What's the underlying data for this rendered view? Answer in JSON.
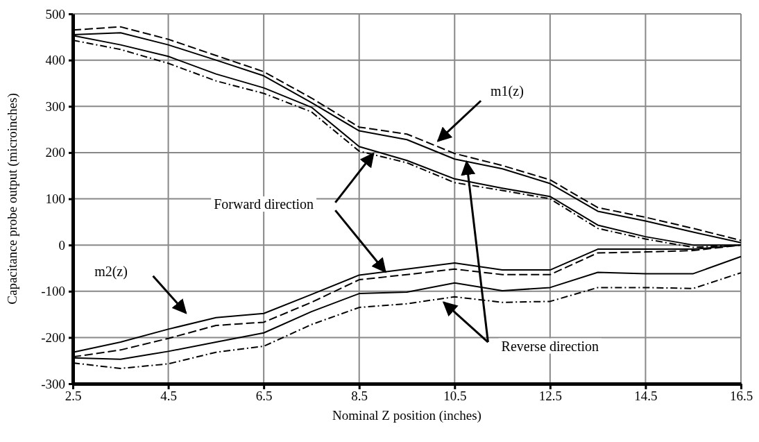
{
  "chart_data": {
    "type": "line",
    "xlabel": "Nominal Z position (inches)",
    "ylabel": "Capacitance probe output (microinches)",
    "x": [
      2.5,
      3.5,
      4.5,
      5.5,
      6.5,
      7.5,
      8.5,
      9.5,
      10.5,
      11.5,
      12.5,
      13.5,
      14.5,
      15.5,
      16.5
    ],
    "xlim": [
      2.5,
      16.5
    ],
    "xticks": [
      2.5,
      4.5,
      6.5,
      8.5,
      10.5,
      12.5,
      14.5,
      16.5
    ],
    "ylim": [
      -300,
      500
    ],
    "yticks": [
      -300,
      -200,
      -100,
      0,
      100,
      200,
      300,
      400,
      500
    ],
    "grid": true,
    "marker": "none",
    "series": [
      {
        "color": "#000000",
        "line_style": "dashed",
        "values": [
          465,
          472,
          445,
          410,
          375,
          318,
          255,
          240,
          198,
          172,
          141,
          81,
          60,
          36,
          10
        ]
      },
      {
        "color": "#000000",
        "line_style": "solid",
        "values": [
          455,
          459,
          433,
          400,
          366,
          308,
          247,
          228,
          186,
          165,
          133,
          73,
          52,
          28,
          5
        ]
      },
      {
        "color": "#000000",
        "line_style": "solid",
        "values": [
          453,
          433,
          408,
          370,
          340,
          298,
          213,
          183,
          143,
          123,
          105,
          43,
          18,
          0,
          0
        ]
      },
      {
        "color": "#000000",
        "line_style": "dotted",
        "values": [
          443,
          423,
          393,
          355,
          328,
          288,
          203,
          178,
          135,
          118,
          100,
          36,
          13,
          -5,
          0
        ]
      },
      {
        "color": "#000000",
        "line_style": "solid",
        "values": [
          -232,
          -210,
          -182,
          -157,
          -148,
          -107,
          -65,
          -52,
          -39,
          -54,
          -54,
          -9,
          -9,
          -9,
          0
        ]
      },
      {
        "color": "#000000",
        "line_style": "dashed",
        "values": [
          -242,
          -227,
          -202,
          -174,
          -167,
          -124,
          -75,
          -64,
          -52,
          -64,
          -64,
          -17,
          -15,
          -12,
          0
        ]
      },
      {
        "color": "#000000",
        "line_style": "solid",
        "values": [
          -244,
          -247,
          -230,
          -210,
          -190,
          -144,
          -105,
          -102,
          -82,
          -99,
          -92,
          -59,
          -62,
          -62,
          -25
        ]
      },
      {
        "color": "#000000",
        "line_style": "dotted",
        "values": [
          -255,
          -267,
          -257,
          -232,
          -219,
          -172,
          -135,
          -127,
          -112,
          -124,
          -122,
          -92,
          -92,
          -94,
          -60
        ]
      }
    ],
    "annotations": [
      "m1(z)",
      "m2(z)",
      "Forward direction",
      {
        "text": "Reverse direction",
        "x": 10.75,
        "y": 180
      }
    ]
  }
}
